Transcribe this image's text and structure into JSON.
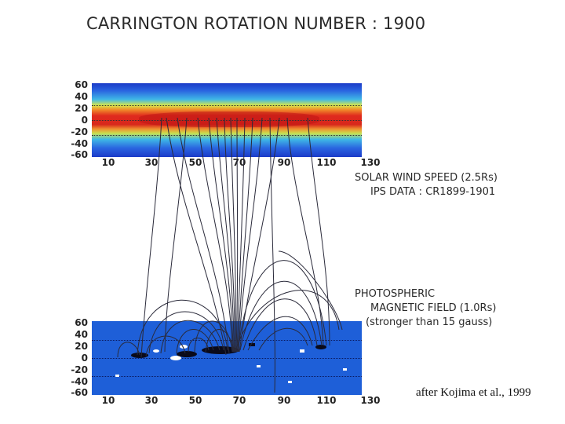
{
  "title": "CARRINGTON ROTATION NUMBER : 1900",
  "top_panel": {
    "y_ticks": [
      "60",
      "40",
      "20",
      "0",
      "-20",
      "-40",
      "-60"
    ],
    "x_ticks": [
      "10",
      "30",
      "50",
      "70",
      "90",
      "110",
      "130"
    ]
  },
  "bottom_panel": {
    "y_ticks": [
      "60",
      "40",
      "20",
      "0",
      "-20",
      "-40",
      "-60"
    ],
    "x_ticks": [
      "10",
      "30",
      "50",
      "70",
      "90",
      "110",
      "130"
    ]
  },
  "labels": {
    "wind_line1": "SOLAR WIND SPEED (2.5Rs)",
    "wind_line2": "IPS DATA : CR1899-1901",
    "mag_line1": "PHOTOSPHERIC",
    "mag_line2": "MAGNETIC FIELD (1.0Rs)",
    "mag_line3": "(stronger than 15 gauss)"
  },
  "credit": "after Kojima et al., 1999",
  "colors": {
    "wind_low": "#1d3fd0",
    "wind_mid": "#36c6e8",
    "wind_high": "#e8322a",
    "field_background": "#1e5fd8",
    "field_lines": "#2a2a3a"
  }
}
